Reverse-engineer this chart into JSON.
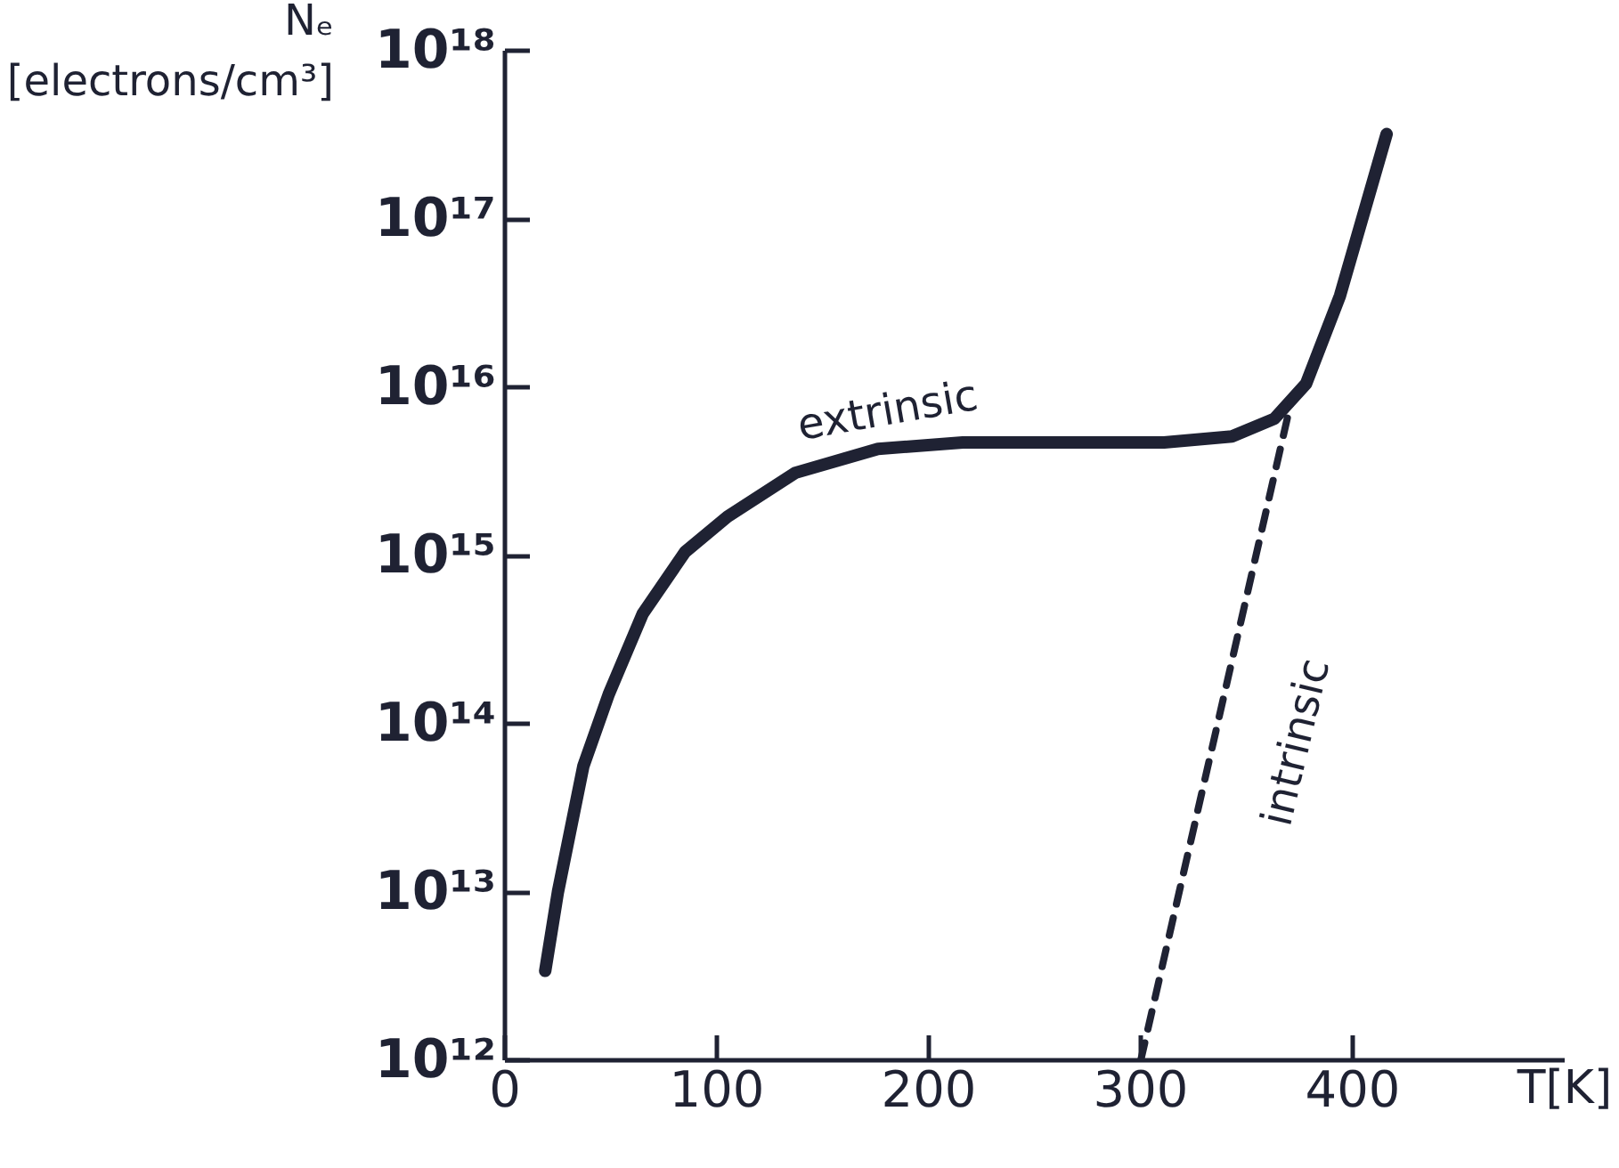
{
  "chart_data": {
    "type": "line",
    "xlabel": "T[K]",
    "ylabel": "Nₑ [electrons/cm³]",
    "log": "y",
    "xlim": [
      0,
      500
    ],
    "ylim": [
      1000000000000.0,
      1e+18
    ],
    "xticks": [
      0,
      100,
      200,
      300,
      400
    ],
    "yticks": [
      {
        "value": 1000000000000.0,
        "label": "10¹²"
      },
      {
        "value": 10000000000000.0,
        "label": "10¹³"
      },
      {
        "value": 100000000000000.0,
        "label": "10¹⁴"
      },
      {
        "value": 1000000000000000.0,
        "label": "10¹⁵"
      },
      {
        "value": 1e+16,
        "label": "10¹⁶"
      },
      {
        "value": 1e+17,
        "label": "10¹⁷"
      },
      {
        "value": 1e+18,
        "label": "10¹⁸"
      }
    ],
    "grid": false,
    "legend": false,
    "line_style": "solid",
    "marker": "none",
    "series": [
      {
        "name": "extrinsic",
        "color": "#1f2233",
        "x": [
          19,
          25,
          37,
          49,
          65,
          85,
          105,
          137,
          176,
          216,
          263,
          311,
          343,
          363,
          378,
          394,
          416
        ],
        "values": [
          3400000000000.0,
          10000000000000.0,
          56000000000000.0,
          150000000000000.0,
          450000000000000.0,
          1050000000000000.0,
          1700000000000000.0,
          3100000000000000.0,
          4300000000000000.0,
          4700000000000000.0,
          4700000000000000.0,
          4700000000000000.0,
          5100000000000000.0,
          6500000000000000.0,
          1.05e+16,
          3.5e+16,
          3.2e+17
        ]
      },
      {
        "name": "intrinsic",
        "color": "#1f2233",
        "line_style": "dashed",
        "x": [
          300,
          371
        ],
        "values": [
          1000000000000.0,
          8300000000000000.0
        ]
      }
    ]
  }
}
